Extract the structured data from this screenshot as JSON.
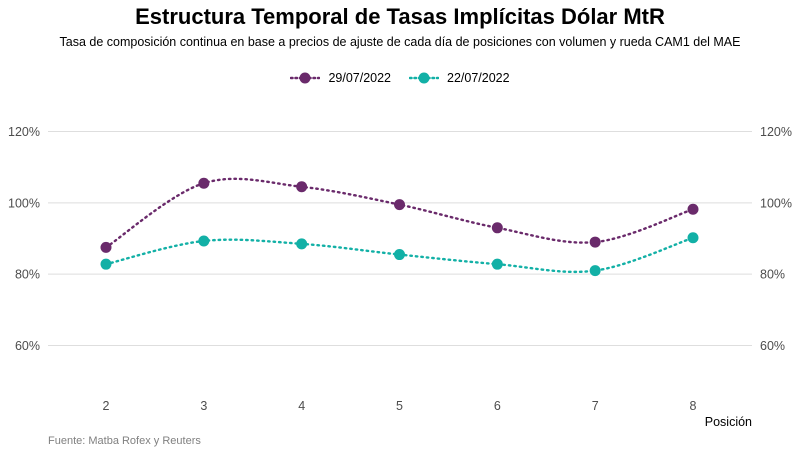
{
  "chart_data": {
    "type": "line",
    "title": "Estructura Temporal de Tasas Implícitas Dólar MtR",
    "subtitle": "Tasa de composición continua en base a precios de ajuste de cada día de posiciones con volumen y rueda CAM1 del MAE",
    "xlabel": "Posición",
    "ylabel": "",
    "x": [
      2,
      3,
      4,
      5,
      6,
      7,
      8
    ],
    "ylim": [
      0.45,
      1.25
    ],
    "yticks": [
      0.6,
      0.8,
      1.0,
      1.2
    ],
    "ytick_labels": [
      "60%",
      "80%",
      "100%",
      "120%"
    ],
    "grid": true,
    "legend_position": "top",
    "series": [
      {
        "name": "29/07/2022",
        "color": "#6a2a6b",
        "values": [
          0.875,
          1.055,
          1.045,
          0.995,
          0.93,
          0.89,
          0.982
        ]
      },
      {
        "name": "22/07/2022",
        "color": "#12b0a6",
        "values": [
          0.828,
          0.893,
          0.885,
          0.855,
          0.828,
          0.81,
          0.902
        ]
      }
    ],
    "source": "Fuente: Matba Rofex y Reuters"
  }
}
